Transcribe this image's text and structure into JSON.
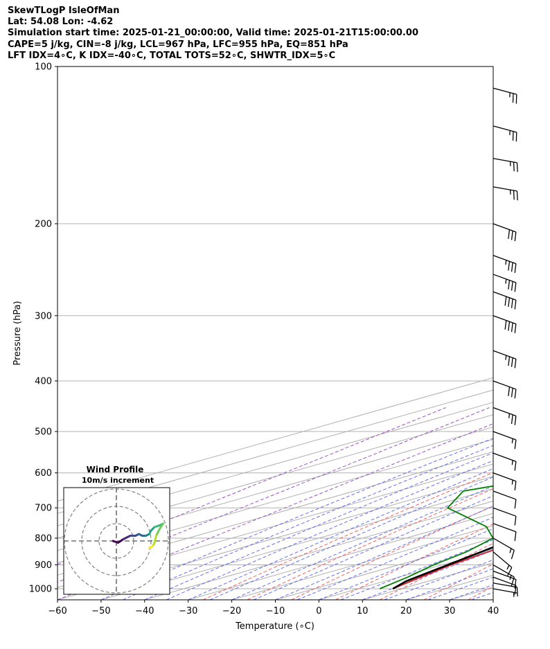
{
  "header": {
    "line1": "SkewTLogP IsleOfMan",
    "line2": "Lat: 54.08   Lon: -4.62",
    "line3": "Simulation start time: 2025-01-21_00:00:00, Valid time: 2025-01-21T15:00:00.00",
    "line4": "CAPE=5 j/kg, CIN=-8 j/kg, LCL=967 hPa, LFC=955 hPa, EQ=851 hPa",
    "line5": "LFT IDX=4∘C, K IDX=-40∘C, TOTAL TOTS=52∘C, SHWTR_IDX=5∘C"
  },
  "chart_data": {
    "type": "line",
    "subtype": "skew-t log-p",
    "xlabel": "Temperature (∘C)",
    "ylabel": "Pressure (hPa)",
    "xlim": [
      -60,
      40
    ],
    "ylim": [
      1050,
      100
    ],
    "y_scale": "log",
    "grid": true,
    "x_ticks": [
      "−60",
      "−50",
      "−40",
      "−30",
      "−20",
      "−10",
      "0",
      "10",
      "20",
      "30",
      "40"
    ],
    "y_ticks": [
      "100",
      "200",
      "300",
      "400",
      "500",
      "600",
      "700",
      "800",
      "900",
      "1000"
    ],
    "x_tick_values": [
      -60,
      -50,
      -40,
      -30,
      -20,
      -10,
      0,
      10,
      20,
      30,
      40
    ],
    "y_tick_values": [
      100,
      200,
      300,
      400,
      500,
      600,
      700,
      800,
      900,
      1000
    ],
    "series": [
      {
        "key": "temperature",
        "color": "#e41a1c",
        "p": [
          1000,
          950,
          900,
          850,
          800,
          750,
          700,
          650,
          600,
          550,
          500,
          450,
          400,
          350,
          300,
          270,
          250,
          230,
          200,
          170,
          150,
          130,
          110,
          100
        ],
        "t": [
          8,
          5,
          2,
          0,
          -2,
          -5,
          -7,
          -11,
          -15,
          -19,
          -23,
          -28,
          -33,
          -39,
          -48,
          -54,
          -58,
          -60,
          -59,
          -55,
          -50,
          -46,
          -43,
          -40
        ]
      },
      {
        "key": "dewpoint",
        "color": "#008000",
        "p": [
          1000,
          950,
          900,
          850,
          800,
          760,
          700,
          650,
          600,
          550,
          500,
          450,
          400,
          370,
          350,
          320,
          300,
          250,
          230,
          200,
          180,
          160,
          150,
          130,
          110,
          100
        ],
        "td": [
          5,
          2,
          -2,
          -5,
          -10,
          -21,
          -45,
          -55,
          -45,
          -47,
          -50,
          -52,
          -58,
          -62,
          -65,
          -66,
          -68,
          -71,
          -73,
          -76,
          -81,
          -88,
          -89,
          -87,
          -87,
          -86
        ]
      },
      {
        "key": "parcel",
        "color": "#000000",
        "p": [
          1000,
          967,
          950,
          900,
          850,
          800,
          750,
          700,
          650,
          600,
          550,
          500,
          450,
          400,
          350,
          300,
          250,
          200,
          150,
          100
        ],
        "t": [
          8,
          4.9,
          4,
          1.3,
          -1.6,
          -4.7,
          -8,
          -11.7,
          -15.9,
          -20.5,
          -25.8,
          -31.7,
          -38.4,
          -45.8,
          -54,
          -62.8,
          -72.6,
          -83.4,
          -95.7,
          -110
        ]
      }
    ],
    "cape_fill": {
      "color": "#a1c4de"
    },
    "wind_barbs": [
      {
        "p": 1000,
        "speed_kt": 5,
        "dir": 280
      },
      {
        "p": 975,
        "speed_kt": 10,
        "dir": 280
      },
      {
        "p": 950,
        "speed_kt": 10,
        "dir": 290
      },
      {
        "p": 925,
        "speed_kt": 10,
        "dir": 290
      },
      {
        "p": 900,
        "speed_kt": 15,
        "dir": 300
      },
      {
        "p": 850,
        "speed_kt": 15,
        "dir": 310
      },
      {
        "p": 800,
        "speed_kt": 15,
        "dir": 300
      },
      {
        "p": 750,
        "speed_kt": 10,
        "dir": 290
      },
      {
        "p": 700,
        "speed_kt": 10,
        "dir": 290
      },
      {
        "p": 650,
        "speed_kt": 10,
        "dir": 290
      },
      {
        "p": 600,
        "speed_kt": 15,
        "dir": 290
      },
      {
        "p": 550,
        "speed_kt": 15,
        "dir": 290
      },
      {
        "p": 500,
        "speed_kt": 15,
        "dir": 290
      },
      {
        "p": 450,
        "speed_kt": 25,
        "dir": 290
      },
      {
        "p": 400,
        "speed_kt": 30,
        "dir": 290
      },
      {
        "p": 350,
        "speed_kt": 35,
        "dir": 290
      },
      {
        "p": 300,
        "speed_kt": 40,
        "dir": 290
      },
      {
        "p": 270,
        "speed_kt": 40,
        "dir": 290
      },
      {
        "p": 250,
        "speed_kt": 35,
        "dir": 290
      },
      {
        "p": 230,
        "speed_kt": 35,
        "dir": 290
      },
      {
        "p": 200,
        "speed_kt": 30,
        "dir": 290
      },
      {
        "p": 170,
        "speed_kt": 25,
        "dir": 280
      },
      {
        "p": 150,
        "speed_kt": 25,
        "dir": 280
      },
      {
        "p": 130,
        "speed_kt": 25,
        "dir": 285
      },
      {
        "p": 110,
        "speed_kt": 25,
        "dir": 285
      }
    ],
    "hodograph": {
      "title": "Wind Profile",
      "subtitle": "10m/s increment",
      "ring_increment_ms": 10,
      "u": [
        -2,
        1,
        4,
        6,
        8,
        11,
        13,
        15,
        17,
        19,
        20,
        22,
        25,
        27,
        25,
        23,
        22,
        21,
        19
      ],
      "v": [
        0,
        -1,
        1,
        2,
        3,
        3,
        4,
        3,
        3,
        4,
        6,
        8,
        9,
        10,
        7,
        3,
        -1,
        -3,
        -4
      ]
    }
  }
}
